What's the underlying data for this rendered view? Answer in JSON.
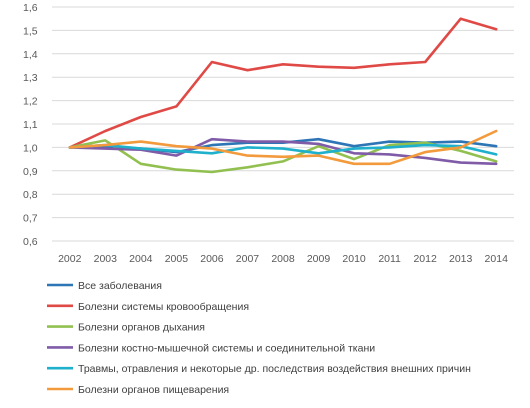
{
  "chart_data": {
    "type": "line",
    "x": [
      "2002",
      "2003",
      "2004",
      "2005",
      "2006",
      "2007",
      "2008",
      "2009",
      "2010",
      "2011",
      "2012",
      "2013",
      "2014"
    ],
    "ylim": [
      0.6,
      1.6
    ],
    "yticks": [
      "0,6",
      "0,7",
      "0,8",
      "0,9",
      "1,0",
      "1,1",
      "1,2",
      "1,3",
      "1,4",
      "1,5",
      "1,6"
    ],
    "grid": true,
    "legend_position": "bottom",
    "series": [
      {
        "name": "Все заболевания",
        "color": "#2e75b6",
        "values": [
          1.0,
          1.005,
          0.995,
          0.98,
          1.01,
          1.02,
          1.02,
          1.035,
          1.005,
          1.025,
          1.02,
          1.025,
          1.005
        ]
      },
      {
        "name": "Болезни системы кровообращения",
        "color": "#e04a46",
        "values": [
          1.0,
          1.07,
          1.13,
          1.175,
          1.365,
          1.33,
          1.355,
          1.345,
          1.34,
          1.355,
          1.365,
          1.55,
          1.505
        ]
      },
      {
        "name": "Болезни органов дыхания",
        "color": "#92c050",
        "values": [
          1.0,
          1.03,
          0.93,
          0.905,
          0.895,
          0.915,
          0.94,
          1.005,
          0.95,
          1.01,
          1.02,
          0.985,
          0.94
        ]
      },
      {
        "name": "Болезни костно-мышечной системы и соединительной ткани",
        "color": "#7f5ba8",
        "values": [
          1.0,
          0.995,
          0.99,
          0.965,
          1.035,
          1.025,
          1.025,
          1.015,
          0.975,
          0.97,
          0.955,
          0.935,
          0.93
        ]
      },
      {
        "name": "Травмы, отравления и некоторые др. последствия воздействия внешних причин",
        "color": "#1fb0cc",
        "values": [
          1.0,
          1.01,
          0.995,
          0.985,
          0.975,
          1.0,
          0.995,
          0.975,
          0.995,
          1.0,
          1.01,
          1.005,
          0.97
        ]
      },
      {
        "name": "Болезни органов пищеварения",
        "color": "#f39a3d",
        "values": [
          1.0,
          1.01,
          1.025,
          1.005,
          0.995,
          0.965,
          0.96,
          0.965,
          0.93,
          0.93,
          0.98,
          1.0,
          1.07
        ]
      }
    ]
  }
}
